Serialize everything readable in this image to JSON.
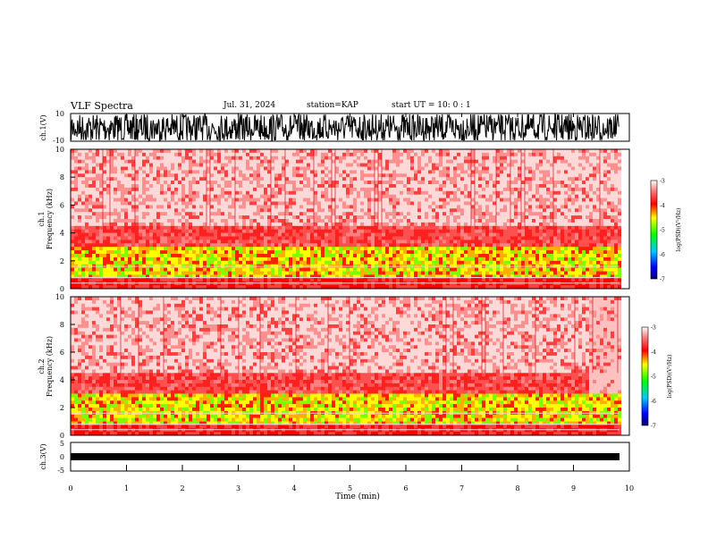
{
  "header": {
    "title": "VLF Spectra",
    "date": "Jul. 31, 2024",
    "station": "station=KAP",
    "start": "start UT = 10: 0 : 1"
  },
  "chart_data": [
    {
      "type": "line",
      "name": "ch1-waveform",
      "ylabel": "ch.1(V)",
      "ylim": [
        -10,
        10
      ],
      "yticks": [
        "10",
        "-10"
      ],
      "xlim": [
        0,
        10
      ]
    },
    {
      "type": "heatmap",
      "name": "ch1-spectrogram",
      "ylabel": "ch.1\nFrequency (kHz)",
      "ylim": [
        0,
        10
      ],
      "yticks": [
        "0",
        "2",
        "4",
        "6",
        "8",
        "10"
      ],
      "xlim": [
        0,
        10
      ],
      "data_end_x": 9.82,
      "colorbar": {
        "label": "log(PSD)(V²/Hz)",
        "ticks": [
          "-3",
          "-4",
          "-5",
          "-6",
          "-7"
        ],
        "range": [
          -7,
          -3
        ]
      }
    },
    {
      "type": "heatmap",
      "name": "ch2-spectrogram",
      "ylabel": "ch.2\nFrequency (kHz)",
      "ylim": [
        0,
        10
      ],
      "yticks": [
        "0",
        "2",
        "4",
        "6",
        "8",
        "10"
      ],
      "xlim": [
        0,
        10
      ],
      "data_end_x": 9.82,
      "colorbar": {
        "label": "log(PSD)(V²/Hz)",
        "ticks": [
          "-3",
          "-4",
          "-5",
          "-6",
          "-7"
        ],
        "range": [
          -7,
          -3
        ]
      }
    },
    {
      "type": "line",
      "name": "ch3-waveform",
      "ylabel": "ch.3(V)",
      "ylim": [
        -5,
        5
      ],
      "yticks": [
        "5",
        "0",
        "-5"
      ],
      "xlim": [
        0,
        10
      ],
      "xlabel": "Time (min)",
      "xticks": [
        "0",
        "1",
        "2",
        "3",
        "4",
        "5",
        "6",
        "7",
        "8",
        "9",
        "10"
      ]
    }
  ]
}
